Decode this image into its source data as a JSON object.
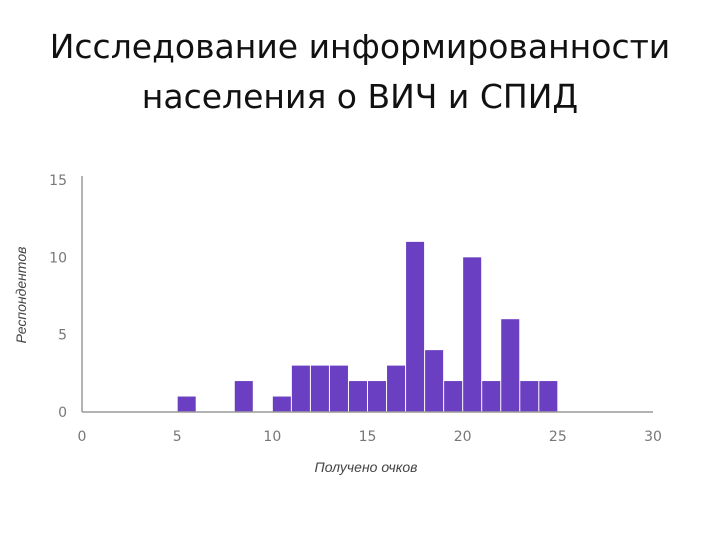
{
  "slide": {
    "title": "Исследование информированности\nнаселения о ВИЧ и СПИД"
  },
  "chart_data": {
    "type": "bar",
    "xlabel": "Получено очков",
    "ylabel": "Респондентов",
    "xlim": [
      0,
      30
    ],
    "ylim": [
      0,
      15
    ],
    "x_ticks": [
      "0",
      "5",
      "10",
      "15",
      "20",
      "25",
      "30"
    ],
    "y_ticks": [
      "0",
      "5",
      "10",
      "15"
    ],
    "bin_width": 1,
    "bins": [
      {
        "x": 0,
        "value": 0
      },
      {
        "x": 1,
        "value": 0
      },
      {
        "x": 2,
        "value": 0
      },
      {
        "x": 3,
        "value": 0
      },
      {
        "x": 4,
        "value": 0
      },
      {
        "x": 5,
        "value": 1
      },
      {
        "x": 6,
        "value": 0
      },
      {
        "x": 7,
        "value": 0
      },
      {
        "x": 8,
        "value": 2
      },
      {
        "x": 9,
        "value": 0
      },
      {
        "x": 10,
        "value": 1
      },
      {
        "x": 11,
        "value": 3
      },
      {
        "x": 12,
        "value": 3
      },
      {
        "x": 13,
        "value": 3
      },
      {
        "x": 14,
        "value": 2
      },
      {
        "x": 15,
        "value": 2
      },
      {
        "x": 16,
        "value": 3
      },
      {
        "x": 17,
        "value": 11
      },
      {
        "x": 18,
        "value": 4
      },
      {
        "x": 19,
        "value": 2
      },
      {
        "x": 20,
        "value": 10
      },
      {
        "x": 21,
        "value": 2
      },
      {
        "x": 22,
        "value": 6
      },
      {
        "x": 23,
        "value": 2
      },
      {
        "x": 24,
        "value": 2
      },
      {
        "x": 25,
        "value": 0
      },
      {
        "x": 26,
        "value": 0
      },
      {
        "x": 27,
        "value": 0
      },
      {
        "x": 28,
        "value": 0
      },
      {
        "x": 29,
        "value": 0
      }
    ],
    "bar_color": "#6a3fc1",
    "grid": false,
    "legend": "none"
  }
}
